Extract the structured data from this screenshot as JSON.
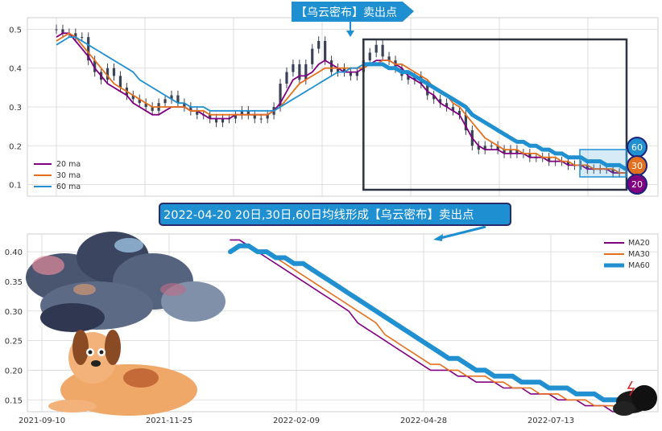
{
  "colors": {
    "ma20": "#800080",
    "ma30": "#e3701e",
    "ma60": "#2090d0",
    "candle": "#3a4255",
    "box": "#2e3440",
    "banner_top": "#1e8fd0",
    "banner_mid_bg": "#1e8fd0",
    "banner_mid_border": "#2a2a6a",
    "grid": "#d6d6d6"
  },
  "annotations": {
    "top_banner": "【乌云密布】卖出点",
    "mid_banner": "2022-04-20 20日,30日,60日均线形成【乌云密布】卖出点",
    "badge_60": "60",
    "badge_30": "30",
    "badge_20": "20"
  },
  "illustrations": {
    "cloud": "storm-cloud-illustration",
    "dog": "dog-illustration",
    "small_cloud": "dark-cloud-lightning-icon"
  },
  "chart_data": [
    {
      "type": "line",
      "title": "",
      "yticks": [
        "0.1",
        "0.2",
        "0.3",
        "0.4",
        "0.5"
      ],
      "ylim": [
        0.07,
        0.53
      ],
      "legend": [
        "20 ma",
        "30 ma",
        "60 ma"
      ],
      "legend_position": "bottom-left",
      "grid": true,
      "candles_close": [
        0.5,
        0.49,
        0.49,
        0.48,
        0.48,
        0.42,
        0.39,
        0.37,
        0.4,
        0.38,
        0.35,
        0.33,
        0.32,
        0.31,
        0.3,
        0.29,
        0.31,
        0.32,
        0.33,
        0.31,
        0.3,
        0.29,
        0.28,
        0.28,
        0.27,
        0.26,
        0.27,
        0.27,
        0.28,
        0.29,
        0.28,
        0.27,
        0.27,
        0.28,
        0.3,
        0.36,
        0.39,
        0.41,
        0.37,
        0.41,
        0.45,
        0.47,
        0.42,
        0.39,
        0.4,
        0.39,
        0.38,
        0.39,
        0.42,
        0.44,
        0.46,
        0.43,
        0.42,
        0.4,
        0.38,
        0.37,
        0.38,
        0.36,
        0.33,
        0.32,
        0.31,
        0.3,
        0.29,
        0.28,
        0.24,
        0.2,
        0.19,
        0.2,
        0.2,
        0.19,
        0.18,
        0.19,
        0.18,
        0.18,
        0.17,
        0.17,
        0.17,
        0.16,
        0.16,
        0.16,
        0.15,
        0.15,
        0.15,
        0.14,
        0.14,
        0.14,
        0.14,
        0.13,
        0.13,
        0.13
      ],
      "series": [
        {
          "name": "20 ma",
          "values": [
            0.48,
            0.49,
            0.49,
            0.47,
            0.45,
            0.43,
            0.4,
            0.38,
            0.36,
            0.35,
            0.34,
            0.33,
            0.31,
            0.3,
            0.29,
            0.28,
            0.28,
            0.29,
            0.3,
            0.3,
            0.3,
            0.29,
            0.29,
            0.28,
            0.27,
            0.27,
            0.27,
            0.27,
            0.28,
            0.28,
            0.28,
            0.28,
            0.28,
            0.28,
            0.29,
            0.31,
            0.34,
            0.37,
            0.38,
            0.38,
            0.39,
            0.41,
            0.42,
            0.41,
            0.4,
            0.39,
            0.39,
            0.39,
            0.4,
            0.41,
            0.42,
            0.42,
            0.42,
            0.41,
            0.4,
            0.38,
            0.37,
            0.36,
            0.34,
            0.33,
            0.31,
            0.3,
            0.29,
            0.28,
            0.25,
            0.22,
            0.2,
            0.19,
            0.19,
            0.19,
            0.18,
            0.18,
            0.18,
            0.18,
            0.17,
            0.17,
            0.17,
            0.16,
            0.16,
            0.16,
            0.15,
            0.15,
            0.15,
            0.14,
            0.14,
            0.14,
            0.14,
            0.13,
            0.13,
            0.13
          ]
        },
        {
          "name": "30 ma",
          "values": [
            0.47,
            0.48,
            0.49,
            0.48,
            0.46,
            0.44,
            0.42,
            0.4,
            0.38,
            0.36,
            0.35,
            0.34,
            0.33,
            0.32,
            0.31,
            0.3,
            0.3,
            0.3,
            0.3,
            0.3,
            0.3,
            0.29,
            0.29,
            0.29,
            0.28,
            0.28,
            0.28,
            0.28,
            0.28,
            0.28,
            0.28,
            0.28,
            0.28,
            0.28,
            0.29,
            0.3,
            0.32,
            0.34,
            0.36,
            0.37,
            0.38,
            0.39,
            0.4,
            0.4,
            0.4,
            0.4,
            0.4,
            0.4,
            0.4,
            0.41,
            0.41,
            0.42,
            0.42,
            0.41,
            0.41,
            0.4,
            0.39,
            0.38,
            0.37,
            0.35,
            0.34,
            0.33,
            0.31,
            0.3,
            0.28,
            0.26,
            0.24,
            0.22,
            0.21,
            0.2,
            0.19,
            0.19,
            0.19,
            0.18,
            0.18,
            0.18,
            0.17,
            0.17,
            0.17,
            0.16,
            0.16,
            0.15,
            0.15,
            0.15,
            0.14,
            0.14,
            0.14,
            0.14,
            0.13,
            0.13
          ]
        },
        {
          "name": "60 ma",
          "values": [
            0.46,
            0.47,
            0.48,
            0.48,
            0.47,
            0.46,
            0.45,
            0.44,
            0.43,
            0.42,
            0.41,
            0.4,
            0.39,
            0.37,
            0.36,
            0.35,
            0.34,
            0.33,
            0.32,
            0.31,
            0.31,
            0.3,
            0.3,
            0.3,
            0.29,
            0.29,
            0.29,
            0.29,
            0.29,
            0.29,
            0.29,
            0.29,
            0.29,
            0.29,
            0.29,
            0.3,
            0.31,
            0.32,
            0.33,
            0.34,
            0.35,
            0.36,
            0.37,
            0.38,
            0.39,
            0.39,
            0.4,
            0.4,
            0.41,
            0.41,
            0.41,
            0.41,
            0.4,
            0.4,
            0.39,
            0.39,
            0.38,
            0.37,
            0.36,
            0.35,
            0.34,
            0.33,
            0.32,
            0.31,
            0.3,
            0.28,
            0.27,
            0.26,
            0.25,
            0.24,
            0.23,
            0.22,
            0.21,
            0.21,
            0.2,
            0.2,
            0.19,
            0.19,
            0.18,
            0.18,
            0.17,
            0.17,
            0.17,
            0.16,
            0.16,
            0.16,
            0.15,
            0.15,
            0.15,
            0.14
          ]
        }
      ]
    },
    {
      "type": "line",
      "title": "",
      "x_ticks": [
        "2021-09-10",
        "2021-11-25",
        "2022-02-09",
        "2022-04-28",
        "2022-07-13"
      ],
      "yticks": [
        "0.15",
        "0.20",
        "0.25",
        "0.30",
        "0.35",
        "0.40"
      ],
      "ylim": [
        0.13,
        0.43
      ],
      "legend": [
        "MA20",
        "MA30",
        "MA60"
      ],
      "legend_position": "top-right",
      "grid": true,
      "series": [
        {
          "name": "MA20",
          "values": [
            0.42,
            0.42,
            0.41,
            0.4,
            0.39,
            0.38,
            0.37,
            0.36,
            0.35,
            0.34,
            0.33,
            0.32,
            0.31,
            0.3,
            0.28,
            0.27,
            0.26,
            0.25,
            0.24,
            0.23,
            0.22,
            0.21,
            0.2,
            0.2,
            0.2,
            0.19,
            0.19,
            0.18,
            0.18,
            0.18,
            0.17,
            0.17,
            0.17,
            0.16,
            0.16,
            0.16,
            0.15,
            0.15,
            0.15,
            0.14,
            0.14,
            0.14,
            0.13,
            0.13
          ]
        },
        {
          "name": "MA30",
          "values": [
            0.4,
            0.41,
            0.41,
            0.4,
            0.4,
            0.39,
            0.38,
            0.37,
            0.36,
            0.35,
            0.34,
            0.33,
            0.32,
            0.31,
            0.3,
            0.29,
            0.28,
            0.26,
            0.25,
            0.24,
            0.23,
            0.22,
            0.21,
            0.21,
            0.2,
            0.2,
            0.19,
            0.19,
            0.19,
            0.18,
            0.18,
            0.17,
            0.17,
            0.17,
            0.16,
            0.16,
            0.16,
            0.15,
            0.15,
            0.15,
            0.14,
            0.14,
            0.14,
            0.13
          ]
        },
        {
          "name": "MA60",
          "values": [
            0.4,
            0.41,
            0.41,
            0.4,
            0.4,
            0.39,
            0.39,
            0.38,
            0.38,
            0.37,
            0.36,
            0.35,
            0.34,
            0.33,
            0.32,
            0.31,
            0.3,
            0.29,
            0.28,
            0.27,
            0.26,
            0.25,
            0.24,
            0.23,
            0.22,
            0.22,
            0.21,
            0.2,
            0.2,
            0.19,
            0.19,
            0.19,
            0.18,
            0.18,
            0.18,
            0.17,
            0.17,
            0.17,
            0.16,
            0.16,
            0.16,
            0.15,
            0.15,
            0.15
          ]
        }
      ]
    }
  ]
}
